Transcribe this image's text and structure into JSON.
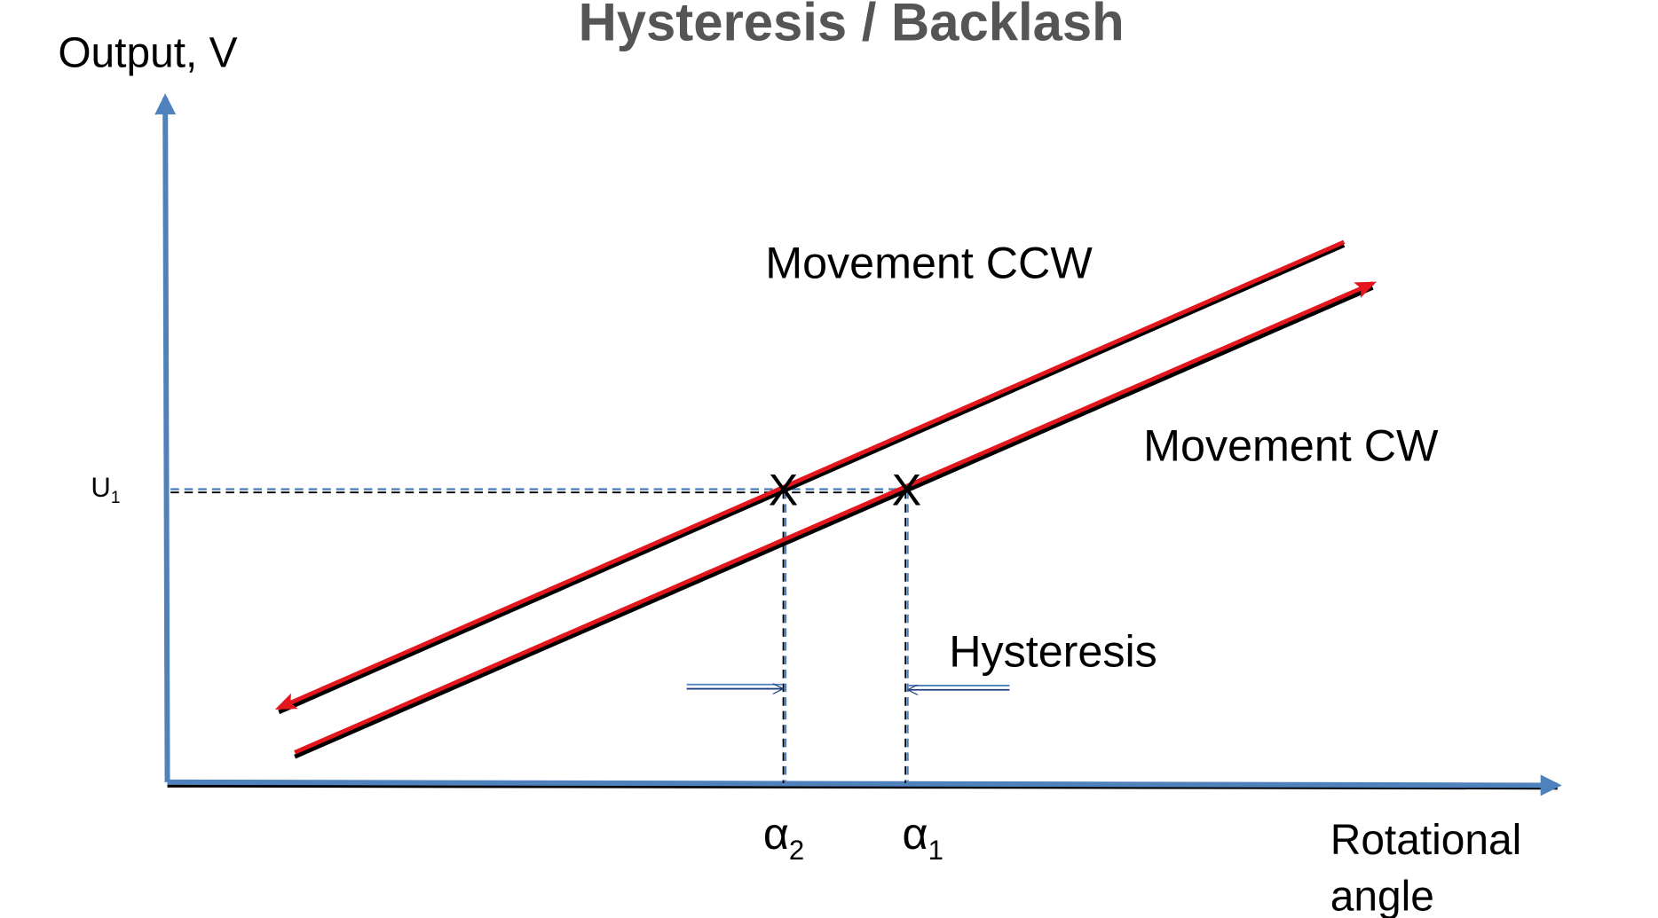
{
  "title": "Hysteresis / Backlash",
  "axes": {
    "y_label": "Output, V",
    "x_label": [
      "Rotational",
      "angle"
    ]
  },
  "lines": [
    {
      "label": "Movement CCW"
    },
    {
      "label": "Movement CW"
    }
  ],
  "annotation": "Hysteresis",
  "markers": {
    "u1": {
      "symbol": "U",
      "subscript": "1"
    },
    "alpha2": {
      "symbol": "α",
      "subscript": "2"
    },
    "alpha1": {
      "symbol": "α",
      "subscript": "1"
    },
    "crossings": [
      "X",
      "X"
    ]
  }
}
